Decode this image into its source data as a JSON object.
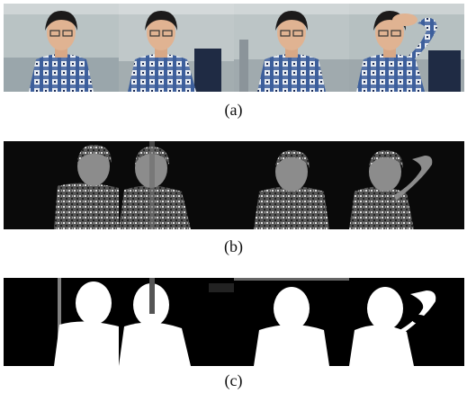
{
  "figure": {
    "captions": [
      "(a)",
      "(b)",
      "(c)"
    ],
    "rows": [
      {
        "name": "rgb-frames",
        "panels": [
          {
            "name": "rgb-frame-1",
            "pose": "frontal"
          },
          {
            "name": "rgb-frame-2",
            "pose": "frontal"
          },
          {
            "name": "rgb-frame-3",
            "pose": "frontal"
          },
          {
            "name": "rgb-frame-4",
            "pose": "hand-on-head"
          }
        ]
      },
      {
        "name": "depth-maps",
        "panels": [
          {
            "name": "depth-map-1"
          },
          {
            "name": "depth-map-2"
          },
          {
            "name": "depth-map-3"
          },
          {
            "name": "depth-map-4"
          }
        ]
      },
      {
        "name": "binary-masks",
        "panels": [
          {
            "name": "mask-1"
          },
          {
            "name": "mask-2"
          },
          {
            "name": "mask-3"
          },
          {
            "name": "mask-4"
          }
        ]
      }
    ],
    "colors": {
      "wall": "#b9c3c4",
      "shirt_blue": "#3d5f9c",
      "shirt_white": "#e8ecf2",
      "skin": "#e0b392",
      "hair": "#1c1a1a",
      "chair": "#1f2b44",
      "depth_bg": "#0a0a0a",
      "depth_fg": "#8c8c8c",
      "mask_fg": "#ffffff",
      "mask_bg": "#000000"
    }
  }
}
